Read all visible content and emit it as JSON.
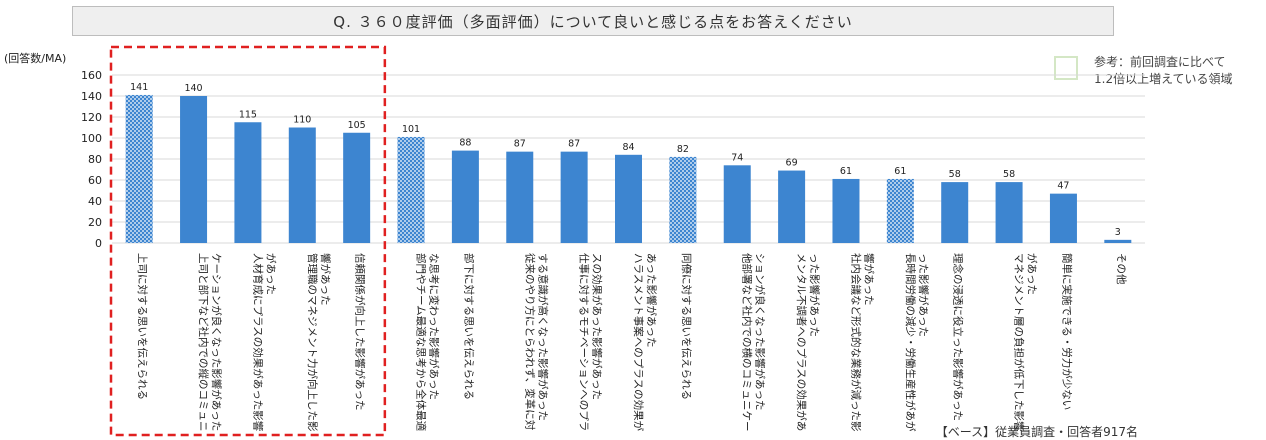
{
  "title": "Q. ３６０度評価（多面評価）について良いと感じる点をお答えください",
  "y_unit_label": "(回答数/MA)",
  "legend": {
    "line1": "参考：前回調査に比べて",
    "line2": "1.2倍以上増えている領域",
    "swatch_color": "#d4e7c5"
  },
  "base_note": "【ベース】従業員調査・回答者917名",
  "colors": {
    "bar": "#3d85d0",
    "highlight_box": "#e02020",
    "grid": "#d9d9d9"
  },
  "chart_data": {
    "type": "bar",
    "title": "Q. ３６０度評価（多面評価）について良いと感じる点をお答えください",
    "ylabel": "(回答数/MA)",
    "ylim": [
      0,
      160
    ],
    "yticks": [
      0,
      20,
      40,
      60,
      80,
      100,
      120,
      140,
      160
    ],
    "grid": true,
    "categories": [
      "上司に対する思いを伝えられる",
      "上司と部下など社内での縦のコミュニケーションが良くなった影響があった",
      "人材育成にプラスの効果があった影響があった",
      "管理職のマネジメント力が向上した影響があった",
      "信頼関係が向上した影響があった",
      "部門やチーム最適な思考から全体最適な思考に変わった影響があった",
      "部下に対する思いを伝えられる",
      "従来のやり方にとらわれず、変革に対する意識が高くなった影響があった",
      "仕事に対するモチベーションへのプラスの効果があった影響があった",
      "ハラスメント事案へのプラスの効果があった影響があった",
      "同僚に対する思いを伝えられる",
      "他部署など社内での横のコミュニケーションが良くなった影響があった",
      "メンタル不調者へのプラスの効果があった影響があった",
      "社内会議など形式的な業務が減った影響があった",
      "長時間労働の減少・労働生産性があがった影響があった",
      "理念の浸透に役立った影響があった",
      "マネジメント層の負担が低下した影響があった",
      "簡単に実施できる・労力が少ない",
      "その他"
    ],
    "values": [
      141,
      140,
      115,
      110,
      105,
      101,
      88,
      87,
      87,
      84,
      82,
      74,
      69,
      61,
      61,
      58,
      58,
      47,
      3
    ],
    "increased_over_previous": [
      true,
      false,
      false,
      false,
      false,
      true,
      false,
      false,
      false,
      false,
      true,
      false,
      false,
      false,
      true,
      false,
      false,
      false,
      false
    ],
    "highlighted_top": 5
  }
}
